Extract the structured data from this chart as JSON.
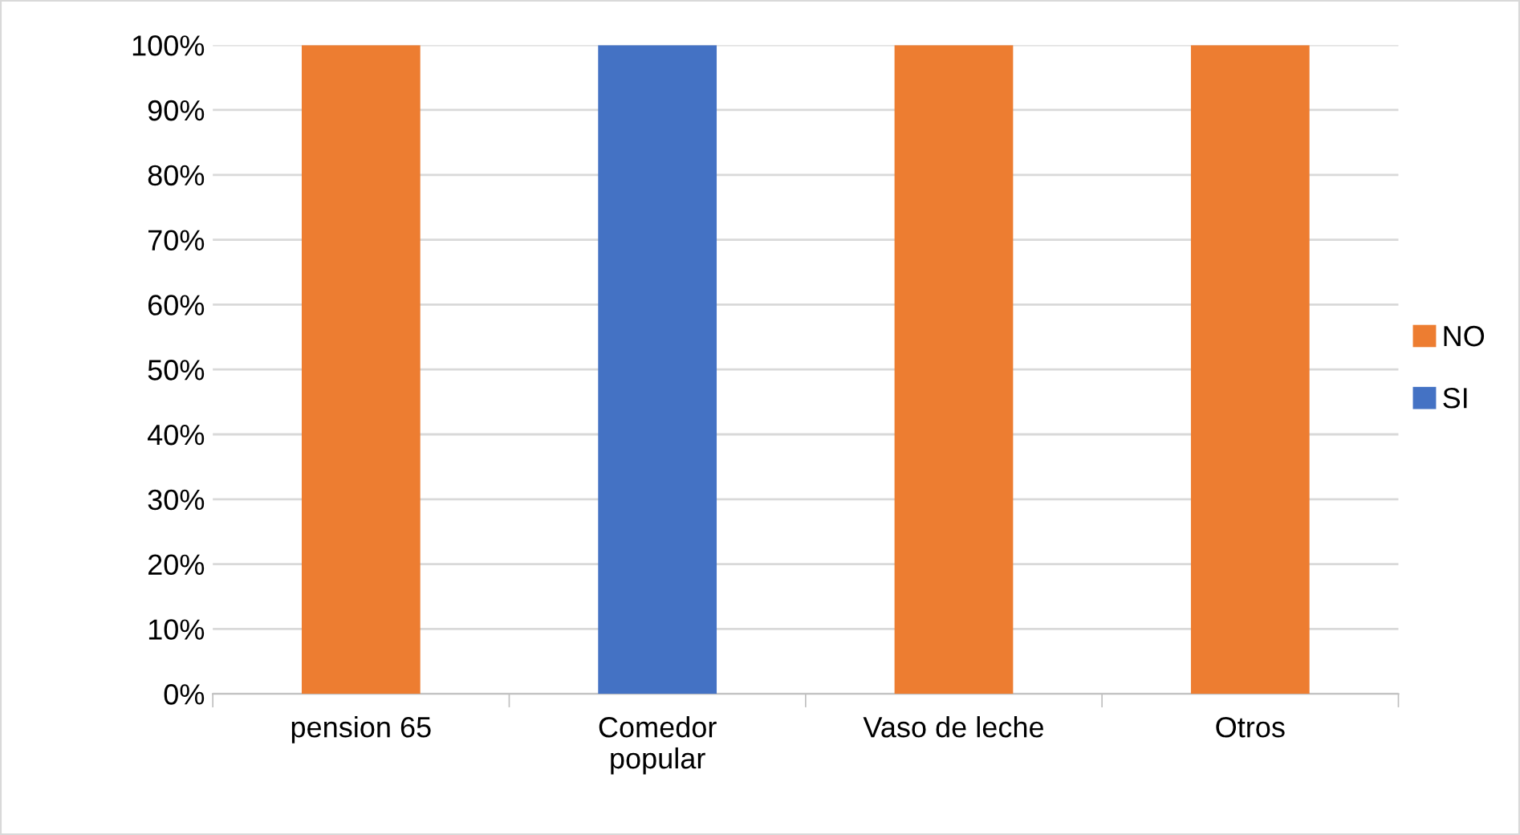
{
  "chart_data": {
    "type": "bar",
    "stacked": true,
    "categories": [
      "pension 65",
      "Comedor\npopular",
      "Vaso de leche",
      "Otros"
    ],
    "series": [
      {
        "name": "SI",
        "color": "#4472c4",
        "values": [
          0,
          100,
          0,
          0
        ]
      },
      {
        "name": "NO",
        "color": "#ed7d31",
        "values": [
          100,
          0,
          100,
          100
        ]
      }
    ],
    "ylim": [
      0,
      100
    ],
    "yticks": [
      {
        "value": 0,
        "label": "0%"
      },
      {
        "value": 10,
        "label": "10%"
      },
      {
        "value": 20,
        "label": "20%"
      },
      {
        "value": 30,
        "label": "30%"
      },
      {
        "value": 40,
        "label": "40%"
      },
      {
        "value": 50,
        "label": "50%"
      },
      {
        "value": 60,
        "label": "60%"
      },
      {
        "value": 70,
        "label": "70%"
      },
      {
        "value": 80,
        "label": "80%"
      },
      {
        "value": 90,
        "label": "90%"
      },
      {
        "value": 100,
        "label": "100%"
      }
    ],
    "grid": "y",
    "legend": "right"
  }
}
